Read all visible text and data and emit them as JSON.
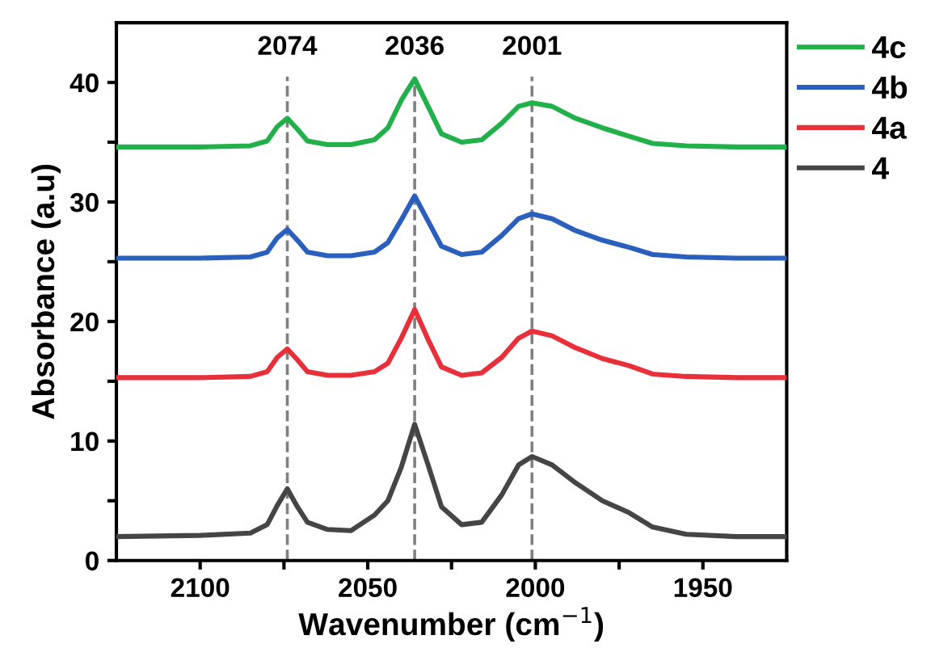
{
  "chart_data": {
    "type": "line",
    "xlabel": "Wavenumber (cm$^{−1}$)",
    "ylabel": "Absorbance (a.u)",
    "xlim": [
      2125,
      1925
    ],
    "ylim": [
      0,
      45
    ],
    "xticks": [
      2100,
      {
        "value": 2075,
        "label": null
      },
      2050,
      {
        "value": 2025,
        "label": null
      },
      2000,
      {
        "value": 1975,
        "label": null
      },
      1950
    ],
    "yticks": [
      0,
      {
        "value": 5,
        "label": null
      },
      10,
      {
        "value": 15,
        "label": null
      },
      20,
      {
        "value": 25,
        "label": null
      },
      30,
      {
        "value": 35,
        "label": null
      },
      40
    ],
    "grid": false,
    "legend": "right",
    "line_style": "solid",
    "marker": "none",
    "ref_lines": [
      {
        "axis": "x",
        "value": 2074,
        "label": "2074",
        "color": "#808080",
        "line_style": "dashed"
      },
      {
        "axis": "x",
        "value": 2036,
        "label": "2036",
        "color": "#808080",
        "line_style": "dashed"
      },
      {
        "axis": "x",
        "value": 2001,
        "label": "2001",
        "color": "#808080",
        "line_style": "dashed"
      }
    ],
    "series": [
      {
        "name": "4c",
        "color": "#22b04b",
        "x": [
          2125,
          2100,
          2085,
          2080,
          2077,
          2074,
          2071,
          2068,
          2062,
          2055,
          2048,
          2044,
          2040,
          2036,
          2032,
          2028,
          2022,
          2016,
          2010,
          2005,
          2001,
          1995,
          1988,
          1980,
          1972,
          1965,
          1955,
          1940,
          1925
        ],
        "values": [
          34.6,
          34.6,
          34.7,
          35.1,
          36.3,
          37,
          36.1,
          35.1,
          34.8,
          34.8,
          35.2,
          36.2,
          38.5,
          40.3,
          38,
          35.7,
          35,
          35.2,
          36.6,
          38,
          38.3,
          38,
          37,
          36.2,
          35.5,
          34.9,
          34.7,
          34.6,
          34.6
        ]
      },
      {
        "name": "4b",
        "color": "#2b5fbd",
        "x": [
          2125,
          2100,
          2085,
          2080,
          2077,
          2074,
          2071,
          2068,
          2062,
          2055,
          2048,
          2044,
          2040,
          2036,
          2032,
          2028,
          2022,
          2016,
          2010,
          2005,
          2001,
          1995,
          1988,
          1980,
          1972,
          1965,
          1955,
          1940,
          1925
        ],
        "values": [
          25.3,
          25.3,
          25.4,
          25.8,
          27,
          27.7,
          26.8,
          25.8,
          25.5,
          25.5,
          25.8,
          26.6,
          28.5,
          30.5,
          28.4,
          26.3,
          25.6,
          25.8,
          27.2,
          28.6,
          29,
          28.6,
          27.6,
          26.8,
          26.2,
          25.6,
          25.4,
          25.3,
          25.3
        ]
      },
      {
        "name": "4a",
        "color": "#e8303a",
        "x": [
          2125,
          2100,
          2085,
          2080,
          2077,
          2074,
          2071,
          2068,
          2062,
          2055,
          2048,
          2044,
          2040,
          2036,
          2032,
          2028,
          2022,
          2016,
          2010,
          2005,
          2001,
          1995,
          1988,
          1980,
          1972,
          1965,
          1955,
          1940,
          1925
        ],
        "values": [
          15.3,
          15.3,
          15.4,
          15.8,
          17,
          17.7,
          16.8,
          15.8,
          15.5,
          15.5,
          15.8,
          16.5,
          18.6,
          21,
          18.5,
          16.2,
          15.5,
          15.7,
          17,
          18.6,
          19.2,
          18.8,
          17.8,
          16.9,
          16.3,
          15.6,
          15.4,
          15.3,
          15.3
        ]
      },
      {
        "name": "4",
        "color": "#454545",
        "x": [
          2125,
          2100,
          2085,
          2080,
          2077,
          2074,
          2071,
          2068,
          2062,
          2055,
          2048,
          2044,
          2040,
          2036,
          2032,
          2028,
          2022,
          2016,
          2010,
          2005,
          2001,
          1995,
          1988,
          1980,
          1972,
          1965,
          1955,
          1940,
          1925
        ],
        "values": [
          2,
          2.1,
          2.3,
          3,
          4.6,
          6,
          4.5,
          3.2,
          2.6,
          2.5,
          3.8,
          5,
          7.8,
          11.4,
          8,
          4.5,
          3,
          3.2,
          5.5,
          8,
          8.7,
          8,
          6.5,
          5,
          4,
          2.8,
          2.2,
          2.0,
          2
        ]
      }
    ]
  }
}
